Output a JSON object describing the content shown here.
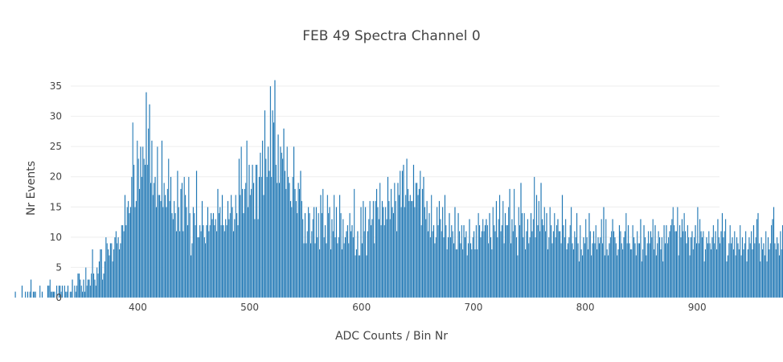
{
  "chart_data": {
    "type": "bar",
    "title": "FEB 49 Spectra Channel 0",
    "xlabel": "ADC Counts / Bin Nr",
    "ylabel": "Nr Events",
    "xlim": [
      340,
      920
    ],
    "ylim": [
      0,
      37
    ],
    "xticks": [
      400,
      500,
      600,
      700,
      800,
      900
    ],
    "yticks": [
      0,
      5,
      10,
      15,
      20,
      25,
      30,
      35
    ],
    "grid": true,
    "legend": "none",
    "bar_color": "#1f77b4",
    "x_start": 290,
    "x_step": 1,
    "values": [
      1,
      0,
      0,
      0,
      0,
      0,
      2,
      0,
      0,
      1,
      0,
      1,
      0,
      1,
      3,
      0,
      1,
      1,
      1,
      0,
      0,
      0,
      2,
      0,
      1,
      0,
      0,
      0,
      0,
      2,
      2,
      3,
      1,
      1,
      1,
      1,
      0,
      2,
      0,
      2,
      2,
      1,
      2,
      0,
      2,
      1,
      1,
      2,
      0,
      1,
      1,
      3,
      0,
      2,
      1,
      2,
      4,
      4,
      3,
      2,
      1,
      3,
      1,
      5,
      2,
      3,
      3,
      2,
      4,
      8,
      4,
      3,
      2,
      5,
      4,
      6,
      8,
      8,
      3,
      4,
      6,
      10,
      9,
      8,
      7,
      9,
      9,
      6,
      8,
      10,
      11,
      9,
      10,
      8,
      9,
      12,
      12,
      11,
      17,
      12,
      15,
      16,
      14,
      15,
      20,
      29,
      22,
      15,
      16,
      26,
      23,
      18,
      25,
      20,
      25,
      23,
      22,
      34,
      22,
      28,
      32,
      19,
      26,
      17,
      19,
      20,
      15,
      25,
      17,
      17,
      16,
      26,
      15,
      19,
      17,
      15,
      18,
      23,
      16,
      20,
      14,
      13,
      16,
      14,
      11,
      21,
      15,
      11,
      18,
      19,
      11,
      20,
      17,
      15,
      12,
      20,
      14,
      7,
      9,
      15,
      14,
      12,
      21,
      10,
      10,
      12,
      11,
      16,
      12,
      10,
      9,
      12,
      15,
      11,
      12,
      14,
      13,
      14,
      12,
      13,
      11,
      18,
      14,
      15,
      12,
      17,
      12,
      11,
      13,
      12,
      16,
      13,
      14,
      17,
      15,
      11,
      13,
      17,
      14,
      12,
      23,
      17,
      25,
      18,
      14,
      18,
      19,
      26,
      15,
      22,
      17,
      18,
      22,
      19,
      13,
      22,
      22,
      13,
      20,
      24,
      20,
      26,
      17,
      31,
      23,
      20,
      25,
      21,
      35,
      20,
      31,
      29,
      36,
      22,
      19,
      27,
      19,
      25,
      24,
      23,
      28,
      21,
      18,
      25,
      20,
      19,
      16,
      15,
      20,
      25,
      18,
      16,
      14,
      19,
      18,
      21,
      16,
      13,
      9,
      14,
      9,
      11,
      15,
      14,
      9,
      11,
      13,
      15,
      9,
      15,
      10,
      14,
      8,
      17,
      14,
      18,
      10,
      12,
      9,
      17,
      14,
      15,
      8,
      13,
      11,
      17,
      10,
      15,
      9,
      10,
      17,
      14,
      8,
      13,
      9,
      10,
      11,
      12,
      9,
      14,
      11,
      12,
      10,
      18,
      7,
      8,
      11,
      7,
      7,
      15,
      9,
      16,
      11,
      15,
      7,
      11,
      13,
      16,
      12,
      13,
      16,
      9,
      16,
      18,
      15,
      13,
      19,
      12,
      16,
      15,
      12,
      15,
      13,
      20,
      16,
      13,
      18,
      15,
      14,
      19,
      16,
      11,
      19,
      17,
      21,
      15,
      21,
      22,
      15,
      17,
      23,
      18,
      16,
      17,
      16,
      16,
      22,
      15,
      19,
      19,
      17,
      18,
      21,
      12,
      18,
      20,
      15,
      13,
      16,
      11,
      14,
      10,
      17,
      11,
      12,
      9,
      10,
      15,
      12,
      16,
      13,
      11,
      15,
      10,
      17,
      12,
      8,
      10,
      14,
      10,
      12,
      11,
      9,
      15,
      8,
      8,
      14,
      11,
      9,
      12,
      8,
      12,
      10,
      11,
      7,
      9,
      13,
      9,
      8,
      10,
      11,
      8,
      12,
      8,
      14,
      12,
      10,
      11,
      13,
      11,
      12,
      13,
      12,
      9,
      14,
      10,
      8,
      15,
      12,
      11,
      16,
      10,
      13,
      17,
      11,
      12,
      16,
      9,
      14,
      12,
      12,
      15,
      18,
      9,
      13,
      11,
      18,
      12,
      10,
      7,
      15,
      12,
      19,
      14,
      10,
      14,
      8,
      11,
      13,
      9,
      10,
      14,
      11,
      13,
      20,
      10,
      17,
      12,
      16,
      11,
      19,
      13,
      12,
      15,
      11,
      14,
      8,
      10,
      15,
      12,
      9,
      11,
      14,
      10,
      12,
      13,
      11,
      11,
      9,
      17,
      12,
      10,
      13,
      8,
      9,
      10,
      12,
      15,
      9,
      8,
      11,
      10,
      14,
      9,
      6,
      12,
      8,
      7,
      10,
      9,
      13,
      10,
      8,
      14,
      11,
      7,
      9,
      11,
      9,
      12,
      8,
      10,
      9,
      10,
      13,
      9,
      15,
      7,
      13,
      8,
      7,
      9,
      10,
      11,
      13,
      11,
      10,
      9,
      7,
      8,
      12,
      11,
      9,
      8,
      10,
      11,
      14,
      9,
      12,
      9,
      8,
      8,
      12,
      10,
      9,
      7,
      11,
      9,
      9,
      13,
      6,
      8,
      12,
      10,
      7,
      9,
      11,
      9,
      11,
      10,
      13,
      8,
      12,
      7,
      9,
      11,
      10,
      8,
      10,
      6,
      12,
      9,
      12,
      9,
      10,
      11,
      12,
      13,
      15,
      12,
      11,
      11,
      15,
      7,
      12,
      10,
      13,
      11,
      14,
      11,
      9,
      12,
      10,
      7,
      10,
      11,
      8,
      10,
      12,
      9,
      15,
      9,
      13,
      11,
      10,
      11,
      6,
      8,
      10,
      9,
      11,
      9,
      8,
      10,
      12,
      9,
      11,
      8,
      13,
      10,
      9,
      11,
      14,
      10,
      11,
      13,
      6,
      7,
      9,
      12,
      9,
      10,
      8,
      11,
      7,
      10,
      9,
      8,
      12,
      7,
      10,
      8,
      9,
      11,
      6,
      8,
      10,
      9,
      11,
      8,
      12,
      9,
      10,
      13,
      14,
      9,
      6,
      10,
      8,
      9,
      7,
      11,
      6,
      10,
      8,
      9,
      12,
      13,
      15,
      9,
      8,
      10,
      9,
      7,
      11,
      8,
      12,
      9,
      10,
      8,
      6,
      12,
      11,
      9,
      7,
      10,
      8,
      9,
      11,
      7,
      10,
      8,
      9,
      11,
      7,
      8,
      10,
      9,
      11,
      8,
      12,
      14,
      10,
      7,
      9,
      11,
      6,
      8,
      10,
      13,
      9,
      10,
      8,
      9,
      7,
      11,
      8,
      9,
      10,
      8,
      7,
      6,
      12,
      9,
      11,
      8,
      10,
      9,
      7,
      8,
      12,
      9,
      7,
      10,
      8,
      9,
      11,
      7,
      10,
      8
    ]
  }
}
